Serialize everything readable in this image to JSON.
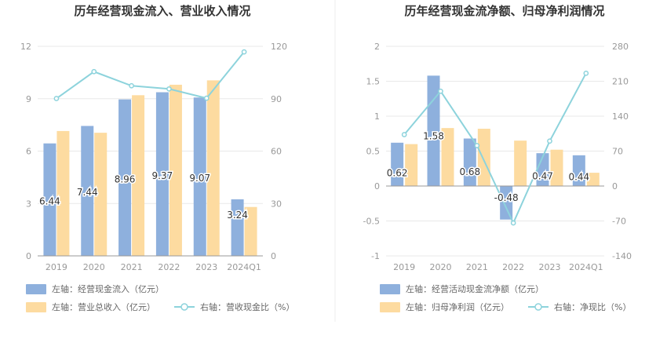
{
  "chart_data": [
    {
      "type": "bar",
      "title": "历年经营现金流入、营业收入情况",
      "categories": [
        "2019",
        "2020",
        "2021",
        "2022",
        "2023",
        "2024Q1"
      ],
      "left_axis": {
        "min": 0,
        "max": 12,
        "ticks": [
          "0",
          "3",
          "6",
          "9",
          "12"
        ]
      },
      "right_axis": {
        "min": 0,
        "max": 120,
        "ticks": [
          "0",
          "30",
          "60",
          "90",
          "120"
        ]
      },
      "series": [
        {
          "name": "左轴：经营现金流入（亿元）",
          "kind": "bar",
          "axis": "left",
          "color": "#8eb0dd",
          "values": [
            6.44,
            7.44,
            8.96,
            9.37,
            9.07,
            3.24
          ],
          "labels": [
            "6.44",
            "7.44",
            "8.96",
            "9.37",
            "9.07",
            "3.24"
          ]
        },
        {
          "name": "左轴：营业总收入（亿元）",
          "kind": "bar",
          "axis": "left",
          "color": "#fddba0",
          "values": [
            7.15,
            7.05,
            9.2,
            9.8,
            10.05,
            2.8
          ]
        },
        {
          "name": "右轴：营收现金比（%）",
          "kind": "line",
          "axis": "right",
          "color": "#8dd3dc",
          "values": [
            90.1,
            105.5,
            97.4,
            95.6,
            90.3,
            116.8
          ]
        }
      ],
      "legend_position": "bottom"
    },
    {
      "type": "bar",
      "title": "历年经营现金流净额、归母净利润情况",
      "categories": [
        "2019",
        "2020",
        "2021",
        "2022",
        "2023",
        "2024Q1"
      ],
      "left_axis": {
        "min": -1,
        "max": 2,
        "ticks": [
          "-1",
          "-0.5",
          "0",
          "0.5",
          "1",
          "1.5",
          "2"
        ]
      },
      "right_axis": {
        "min": -140,
        "max": 280,
        "ticks": [
          "-140",
          "-70",
          "0",
          "70",
          "140",
          "210",
          "280"
        ]
      },
      "series": [
        {
          "name": "左轴：经营活动现金流净额（亿元）",
          "kind": "bar",
          "axis": "left",
          "color": "#8eb0dd",
          "values": [
            0.62,
            1.58,
            0.68,
            -0.48,
            0.47,
            0.44
          ],
          "labels": [
            "0.62",
            "1.58",
            "0.68",
            "-0.48",
            "0.47",
            "0.44"
          ]
        },
        {
          "name": "左轴：归母净利润（亿元）",
          "kind": "bar",
          "axis": "left",
          "color": "#fddba0",
          "values": [
            0.6,
            0.83,
            0.82,
            0.65,
            0.52,
            0.19
          ]
        },
        {
          "name": "右轴：净现比（%）",
          "kind": "line",
          "axis": "right",
          "color": "#8dd3dc",
          "values": [
            103,
            190,
            81,
            -74,
            90,
            226
          ]
        }
      ],
      "legend_position": "bottom"
    }
  ]
}
